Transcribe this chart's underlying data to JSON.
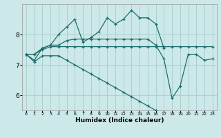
{
  "bg_color": "#cce8e8",
  "grid_color": "#aad0d0",
  "line_color": "#1a6e6e",
  "xlabel": "Humidex (Indice chaleur)",
  "xlim": [
    -0.5,
    23.5
  ],
  "ylim": [
    5.5,
    9.0
  ],
  "yticks": [
    6,
    7,
    8
  ],
  "xtick_labels": [
    "0",
    "1",
    "2",
    "3",
    "4",
    "5",
    "6",
    "7",
    "8",
    "9",
    "10",
    "11",
    "12",
    "13",
    "14",
    "15",
    "16",
    "17",
    "18",
    "19",
    "20",
    "21",
    "22",
    "23"
  ],
  "series": [
    {
      "x": [
        0,
        1,
        2,
        3,
        4,
        5,
        6,
        7,
        8,
        9,
        10,
        11,
        12,
        13,
        14,
        15,
        16,
        17
      ],
      "y": [
        7.35,
        7.15,
        7.55,
        7.65,
        8.0,
        8.25,
        8.5,
        7.75,
        7.9,
        8.1,
        8.55,
        8.35,
        8.5,
        8.8,
        8.55,
        8.55,
        8.35,
        7.55
      ]
    },
    {
      "x": [
        0,
        1,
        2,
        3,
        4,
        5,
        6,
        7,
        8,
        9,
        10,
        11,
        12,
        13,
        14,
        15,
        16,
        17,
        18,
        19,
        20,
        21,
        22,
        23
      ],
      "y": [
        7.35,
        7.35,
        7.55,
        7.65,
        7.65,
        7.8,
        7.85,
        7.85,
        7.85,
        7.85,
        7.85,
        7.85,
        7.85,
        7.85,
        7.85,
        7.85,
        7.65,
        7.2,
        5.9,
        6.3,
        7.35,
        7.35,
        7.15,
        7.2
      ]
    },
    {
      "x": [
        0,
        1,
        2,
        3,
        4,
        5,
        6,
        7,
        8,
        9,
        10,
        11,
        12,
        13,
        14,
        15,
        16,
        17,
        18,
        19,
        20,
        21,
        22,
        23
      ],
      "y": [
        7.35,
        7.35,
        7.5,
        7.6,
        7.6,
        7.6,
        7.6,
        7.6,
        7.6,
        7.6,
        7.6,
        7.6,
        7.6,
        7.6,
        7.6,
        7.6,
        7.6,
        7.6,
        7.6,
        7.6,
        7.6,
        7.6,
        7.6,
        7.6
      ]
    },
    {
      "x": [
        0,
        1,
        2,
        3,
        4,
        5,
        6,
        7,
        8,
        9,
        10,
        11,
        12,
        13,
        14,
        15,
        16
      ],
      "y": [
        7.35,
        7.1,
        7.3,
        7.3,
        7.3,
        7.15,
        7.0,
        6.85,
        6.7,
        6.55,
        6.4,
        6.25,
        6.1,
        5.95,
        5.8,
        5.65,
        5.5
      ]
    }
  ],
  "figsize": [
    3.2,
    2.0
  ],
  "dpi": 100
}
